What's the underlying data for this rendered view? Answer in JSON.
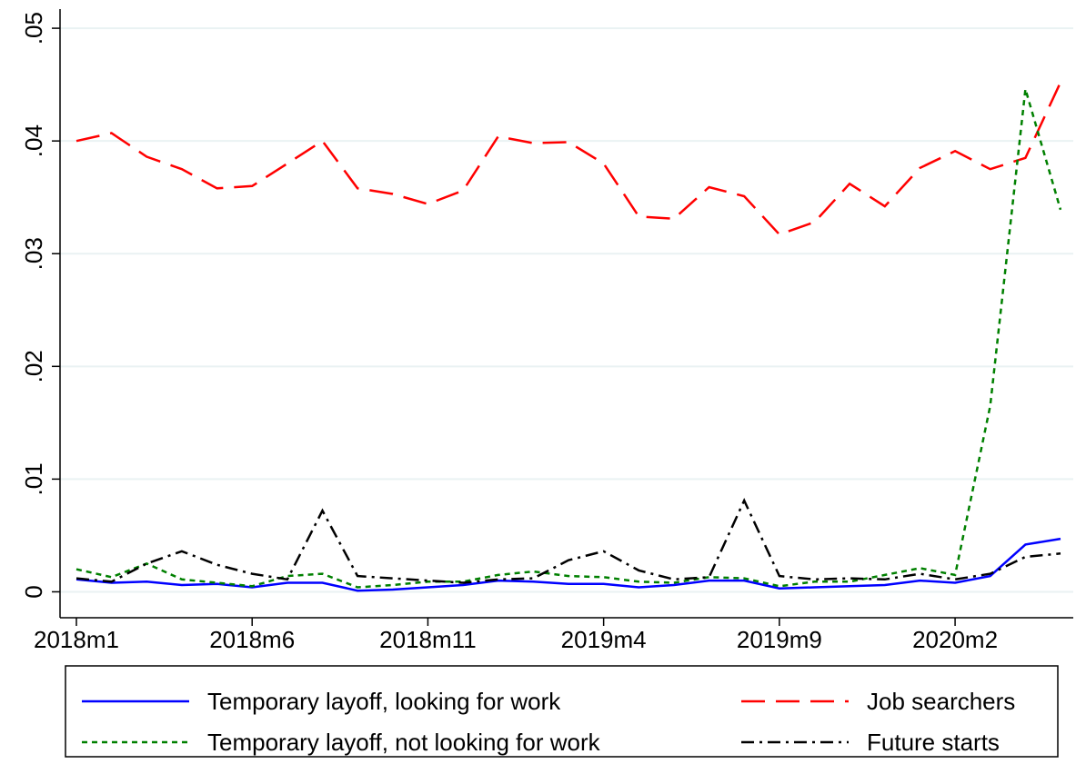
{
  "chart_data": {
    "type": "line",
    "categories": [
      "2018m1",
      null,
      null,
      null,
      null,
      "2018m6",
      null,
      null,
      null,
      null,
      "2018m11",
      null,
      null,
      null,
      null,
      "2019m4",
      null,
      null,
      null,
      null,
      "2019m9",
      null,
      null,
      null,
      null,
      "2020m2",
      null,
      null,
      null
    ],
    "ylim": [
      -0.0023,
      0.0517
    ],
    "yticks": [
      0,
      {
        "value": 0.01,
        "label": ".01"
      },
      {
        "value": 0.02,
        "label": ".02"
      },
      {
        "value": 0.03,
        "label": ".03"
      },
      {
        "value": 0.04,
        "label": ".04"
      },
      {
        "value": 0.05,
        "label": ".05"
      }
    ],
    "grid": true,
    "series": [
      {
        "name": "Temporary layoff, looking for work",
        "color": "#0000ff",
        "dash": "solid",
        "values": [
          0.0011,
          0.0008,
          0.0009,
          0.0006,
          0.0007,
          0.0004,
          0.0008,
          0.0008,
          0.0001,
          0.0002,
          0.0004,
          0.0006,
          0.001,
          0.0009,
          0.0007,
          0.0007,
          0.0004,
          0.0006,
          0.001,
          0.001,
          0.0003,
          0.0004,
          0.0005,
          0.0006,
          0.001,
          0.0008,
          0.0014,
          0.0042,
          0.0047
        ]
      },
      {
        "name": "Job searchers",
        "color": "#ff0000",
        "dash": "longdash",
        "values": [
          0.04,
          0.0407,
          0.0386,
          0.0375,
          0.0358,
          0.036,
          0.038,
          0.04,
          0.0358,
          0.0353,
          0.0344,
          0.0356,
          0.0404,
          0.0398,
          0.0399,
          0.038,
          0.0333,
          0.0331,
          0.0359,
          0.0351,
          0.0317,
          0.0328,
          0.0362,
          0.0342,
          0.0376,
          0.0391,
          0.0375,
          0.0385,
          0.0452
        ]
      },
      {
        "name": "Temporary layoff, not looking for work",
        "color": "#008000",
        "dash": "shortdash",
        "values": [
          0.002,
          0.0013,
          0.0025,
          0.0011,
          0.0008,
          0.0005,
          0.0014,
          0.0016,
          0.0004,
          0.0006,
          0.0009,
          0.0009,
          0.0015,
          0.0018,
          0.0014,
          0.0013,
          0.0009,
          0.0008,
          0.0013,
          0.0012,
          0.0005,
          0.0009,
          0.0009,
          0.0015,
          0.0021,
          0.0015,
          0.0165,
          0.0446,
          0.0339
        ]
      },
      {
        "name": "Future starts",
        "color": "#000000",
        "dash": "dashdot",
        "values": [
          0.0012,
          0.0009,
          0.0025,
          0.0036,
          0.0024,
          0.0016,
          0.0011,
          0.0072,
          0.0014,
          0.0012,
          0.001,
          0.0008,
          0.0011,
          0.0012,
          0.0028,
          0.0036,
          0.0019,
          0.0011,
          0.0013,
          0.0081,
          0.0014,
          0.0011,
          0.0012,
          0.0011,
          0.0016,
          0.0011,
          0.0016,
          0.0031,
          0.0034
        ]
      }
    ]
  }
}
